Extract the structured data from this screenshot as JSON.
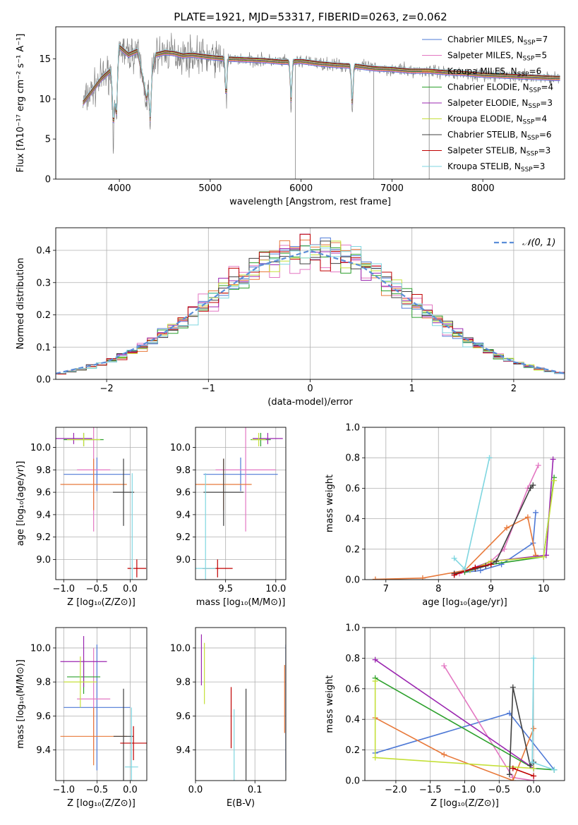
{
  "title": "PLATE=1921, MJD=53317, FIBERID=0263, z=0.062",
  "colors": [
    "#4e79d6",
    "#e377c2",
    "#e8793a",
    "#2ca02c",
    "#9b27b0",
    "#c5e03a",
    "#404040",
    "#c00000",
    "#7fd6e0"
  ],
  "chart_data": [
    {
      "type": "line",
      "panel": "spectrum",
      "xlabel": "wavelength [Angstrom, rest frame]",
      "ylabel": "Flux [fλ10⁻¹⁷ erg cm⁻² s⁻¹ A⁻¹]",
      "xlim": [
        3300,
        8900
      ],
      "ylim": [
        0,
        19
      ],
      "xticks": [
        4000,
        5000,
        6000,
        7000,
        8000
      ],
      "yticks": [
        0,
        5,
        10,
        15
      ],
      "grid": false,
      "legend_position": "top-right",
      "legend": [
        {
          "label": "Chabrier MILES, N",
          "sub": "SSP",
          "tail": "=7"
        },
        {
          "label": "Salpeter MILES, N",
          "sub": "SSP",
          "tail": "=5"
        },
        {
          "label": "Kroupa MILES, N",
          "sub": "SSP",
          "tail": "=6"
        },
        {
          "label": "Chabrier ELODIE, N",
          "sub": "SSP",
          "tail": "=4"
        },
        {
          "label": "Salpeter ELODIE, N",
          "sub": "SSP",
          "tail": "=3"
        },
        {
          "label": "Kroupa ELODIE, N",
          "sub": "SSP",
          "tail": "=4"
        },
        {
          "label": "Chabrier STELIB, N",
          "sub": "SSP",
          "tail": "=6"
        },
        {
          "label": "Salpeter STELIB, N",
          "sub": "SSP",
          "tail": "=3"
        },
        {
          "label": "Kroupa STELIB, N",
          "sub": "SSP",
          "tail": "=3"
        }
      ],
      "model_x": [
        3600,
        3700,
        3800,
        3900,
        3950,
        4000,
        4100,
        4200,
        4300,
        4400,
        4500,
        4600,
        4700,
        4800,
        5000,
        5200,
        5400,
        5600,
        5800,
        6000,
        6200,
        6400,
        6600,
        6800,
        7000,
        7200,
        7400,
        7600,
        7800,
        8000,
        8200,
        8400,
        8600,
        8800
      ],
      "model_y": [
        9.5,
        11,
        12.5,
        13.5,
        10.5,
        16.5,
        15.5,
        16,
        10,
        15.5,
        15.8,
        15.7,
        15.4,
        15.5,
        15.2,
        15.0,
        14.9,
        14.8,
        14.6,
        14.7,
        14.4,
        14.2,
        14.1,
        13.8,
        13.7,
        13.5,
        13.5,
        13.3,
        13.2,
        13.0,
        12.9,
        12.8,
        12.7,
        12.6
      ],
      "absorption_lines": [
        3934,
        3968,
        4340,
        5175,
        5890,
        6563
      ],
      "sky_spikes": [
        5938,
        6800,
        7410
      ]
    },
    {
      "type": "line",
      "panel": "residual-histogram",
      "xlabel": "(data-model)/error",
      "ylabel": "Normed distribution",
      "xlim": [
        -2.5,
        2.5
      ],
      "ylim": [
        0,
        0.47
      ],
      "xticks": [
        -2,
        -1,
        0,
        1,
        2
      ],
      "yticks": [
        0.0,
        0.1,
        0.2,
        0.3,
        0.4
      ],
      "grid": true,
      "legend_position": "top-right",
      "legend": [
        "𝒩(0, 1)"
      ],
      "bin_width": 0.1,
      "reference_x": [
        -2.5,
        -2.0,
        -1.5,
        -1.0,
        -0.5,
        0.0,
        0.5,
        1.0,
        1.5,
        2.0,
        2.5
      ],
      "reference_y": [
        0.018,
        0.054,
        0.13,
        0.242,
        0.352,
        0.399,
        0.352,
        0.242,
        0.13,
        0.054,
        0.018
      ]
    },
    {
      "type": "scatter",
      "panel": "age-vs-Z",
      "xlabel": "Z [log₁₀(Z/Z⊙)]",
      "ylabel": "age  [log₁₀(age/yr)]",
      "xlim": [
        -1.12,
        0.25
      ],
      "ylim": [
        8.82,
        10.18
      ],
      "xticks": [
        -1.0,
        -0.5,
        0.0
      ],
      "yticks": [
        9.0,
        9.2,
        9.4,
        9.6,
        9.8,
        10.0
      ],
      "grid": true,
      "points": [
        {
          "x": -0.5,
          "y": 9.76,
          "xerr": 0.5,
          "yerr": 0.15,
          "series": 0
        },
        {
          "x": -0.55,
          "y": 9.8,
          "xerr": 0.25,
          "yerr": 0.55,
          "series": 1
        },
        {
          "x": -0.55,
          "y": 9.67,
          "xerr": 0.5,
          "yerr": 0.23,
          "series": 2
        },
        {
          "x": -0.7,
          "y": 10.07,
          "xerr": 0.3,
          "yerr": 0.06,
          "series": 3
        },
        {
          "x": -0.85,
          "y": 10.08,
          "xerr": 0.28,
          "yerr": 0.05,
          "series": 4
        },
        {
          "x": -0.7,
          "y": 10.07,
          "xerr": 0.25,
          "yerr": 0.06,
          "series": 5
        },
        {
          "x": -0.1,
          "y": 9.6,
          "xerr": 0.16,
          "yerr": 0.3,
          "series": 6
        },
        {
          "x": 0.1,
          "y": 8.92,
          "xerr": 0.14,
          "yerr": 0.08,
          "series": 7
        },
        {
          "x": 0.03,
          "y": 8.92,
          "xerr": 0.02,
          "yerr": 0.85,
          "series": 8
        }
      ]
    },
    {
      "type": "scatter",
      "panel": "age-vs-mass",
      "xlabel": "mass [log₁₀(M/M⊙)]",
      "ylabel": "",
      "xlim": [
        9.2,
        10.1
      ],
      "ylim": [
        8.82,
        10.18
      ],
      "xticks": [
        9.5,
        10.0
      ],
      "yticks": [
        9.0,
        9.2,
        9.4,
        9.6,
        9.8,
        10.0
      ],
      "grid": true,
      "points": [
        {
          "x": 9.65,
          "y": 9.76,
          "xerr": 0.37,
          "yerr": 0.15,
          "series": 0
        },
        {
          "x": 9.7,
          "y": 9.8,
          "xerr": 0.3,
          "yerr": 0.55,
          "series": 1
        },
        {
          "x": 9.48,
          "y": 9.67,
          "xerr": 0.28,
          "yerr": 0.23,
          "series": 2
        },
        {
          "x": 9.85,
          "y": 10.07,
          "xerr": 0.1,
          "yerr": 0.06,
          "series": 3
        },
        {
          "x": 9.92,
          "y": 10.08,
          "xerr": 0.15,
          "yerr": 0.05,
          "series": 4
        },
        {
          "x": 9.83,
          "y": 10.07,
          "xerr": 0.07,
          "yerr": 0.06,
          "series": 5
        },
        {
          "x": 9.48,
          "y": 9.6,
          "xerr": 0.2,
          "yerr": 0.3,
          "series": 6
        },
        {
          "x": 9.42,
          "y": 8.92,
          "xerr": 0.15,
          "yerr": 0.08,
          "series": 7
        },
        {
          "x": 9.3,
          "y": 8.92,
          "xerr": 0.1,
          "yerr": 0.85,
          "series": 8
        }
      ]
    },
    {
      "type": "line",
      "panel": "mass-weight-vs-age",
      "xlabel": "age  [log₁₀(age/yr)]",
      "ylabel": "mass weight",
      "xlim": [
        6.6,
        10.4
      ],
      "ylim": [
        0,
        1.0
      ],
      "xticks": [
        7,
        8,
        9,
        10
      ],
      "yticks": [
        0.0,
        0.2,
        0.4,
        0.6,
        0.8,
        1.0
      ],
      "grid": true,
      "series": [
        {
          "x": [
            8.3,
            8.8,
            9.2,
            9.8,
            9.85
          ],
          "y": [
            0.04,
            0.06,
            0.1,
            0.24,
            0.44
          ],
          "color": 0
        },
        {
          "x": [
            8.4,
            8.9,
            9.25,
            9.7,
            9.9
          ],
          "y": [
            0.04,
            0.09,
            0.2,
            0.6,
            0.75
          ],
          "color": 1
        },
        {
          "x": [
            6.8,
            7.7,
            8.5,
            9.3,
            9.7,
            9.85
          ],
          "y": [
            0.002,
            0.01,
            0.06,
            0.34,
            0.41,
            0.16
          ],
          "color": 2
        },
        {
          "x": [
            8.5,
            9.0,
            10.0,
            10.2
          ],
          "y": [
            0.05,
            0.1,
            0.15,
            0.67
          ],
          "color": 3
        },
        {
          "x": [
            8.3,
            9.0,
            10.05,
            10.18
          ],
          "y": [
            0.03,
            0.12,
            0.16,
            0.79
          ],
          "color": 4
        },
        {
          "x": [
            8.6,
            9.0,
            10.0,
            10.2
          ],
          "y": [
            0.06,
            0.12,
            0.15,
            0.65
          ],
          "color": 5
        },
        {
          "x": [
            8.3,
            8.7,
            8.9,
            9.1,
            9.75,
            9.8
          ],
          "y": [
            0.04,
            0.07,
            0.09,
            0.12,
            0.6,
            0.62
          ],
          "color": 6
        },
        {
          "x": [
            8.3,
            8.7,
            9.0
          ],
          "y": [
            0.03,
            0.08,
            0.1
          ],
          "color": 7
        },
        {
          "x": [
            8.3,
            8.5,
            8.97
          ],
          "y": [
            0.14,
            0.07,
            0.8
          ],
          "color": 8
        }
      ]
    },
    {
      "type": "scatter",
      "panel": "mass-vs-Z",
      "xlabel": "Z [log₁₀(Z/Z⊙)]",
      "ylabel": "mass [log₁₀(M/M⊙)]",
      "xlim": [
        -1.12,
        0.25
      ],
      "ylim": [
        9.22,
        10.12
      ],
      "xticks": [
        -1.0,
        -0.5,
        0.0
      ],
      "yticks": [
        9.4,
        9.6,
        9.8,
        10.0
      ],
      "grid": true,
      "points": [
        {
          "x": -0.5,
          "y": 9.65,
          "xerr": 0.5,
          "yerr": 0.37,
          "series": 0
        },
        {
          "x": -0.55,
          "y": 9.7,
          "xerr": 0.25,
          "yerr": 0.3,
          "series": 1
        },
        {
          "x": -0.55,
          "y": 9.48,
          "xerr": 0.5,
          "yerr": 0.17,
          "series": 2
        },
        {
          "x": -0.7,
          "y": 9.83,
          "xerr": 0.25,
          "yerr": 0.1,
          "series": 3
        },
        {
          "x": -0.7,
          "y": 9.92,
          "xerr": 0.35,
          "yerr": 0.15,
          "series": 4
        },
        {
          "x": -0.75,
          "y": 9.8,
          "xerr": 0.25,
          "yerr": 0.15,
          "series": 5
        },
        {
          "x": -0.1,
          "y": 9.48,
          "xerr": 0.15,
          "yerr": 0.28,
          "series": 6
        },
        {
          "x": 0.05,
          "y": 9.44,
          "xerr": 0.2,
          "yerr": 0.1,
          "series": 7
        },
        {
          "x": 0.02,
          "y": 9.3,
          "xerr": 0.1,
          "yerr": 0.35,
          "series": 8
        }
      ]
    },
    {
      "type": "scatter",
      "panel": "mass-vs-EBV",
      "xlabel": "E(B-V)",
      "ylabel": "",
      "xlim": [
        0.0,
        0.152
      ],
      "ylim": [
        9.22,
        10.12
      ],
      "xticks": [
        0.0,
        0.1
      ],
      "yticks": [
        9.4,
        9.6,
        9.8,
        10.0
      ],
      "grid": true,
      "points": [
        {
          "x": 0.152,
          "y": 9.65,
          "yerr": 0.37,
          "series": 0
        },
        {
          "x": 0.15,
          "y": 9.7,
          "yerr": 0.2,
          "series": 2
        },
        {
          "x": 0.01,
          "y": 9.93,
          "yerr": 0.15,
          "series": 4
        },
        {
          "x": 0.015,
          "y": 9.85,
          "yerr": 0.18,
          "series": 5
        },
        {
          "x": 0.085,
          "y": 9.48,
          "yerr": 0.28,
          "series": 6
        },
        {
          "x": 0.06,
          "y": 9.59,
          "yerr": 0.18,
          "series": 7
        },
        {
          "x": 0.065,
          "y": 9.42,
          "yerr": 0.22,
          "series": 8
        }
      ]
    },
    {
      "type": "line",
      "panel": "mass-weight-vs-Z",
      "xlabel": "Z [log₁₀(Z/Z⊙)]",
      "ylabel": "mass weight",
      "xlim": [
        -2.45,
        0.45
      ],
      "ylim": [
        0,
        1.0
      ],
      "xticks": [
        -2.0,
        -1.5,
        -1.0,
        -0.5,
        0.0
      ],
      "yticks": [
        0.0,
        0.2,
        0.4,
        0.6,
        0.8,
        1.0
      ],
      "grid": true,
      "series": [
        {
          "x": [
            -2.3,
            -0.35,
            0.3
          ],
          "y": [
            0.18,
            0.44,
            0.07
          ],
          "color": 0
        },
        {
          "x": [
            -1.3,
            -0.3,
            0.0
          ],
          "y": [
            0.75,
            0.02,
            0.0
          ],
          "color": 1
        },
        {
          "x": [
            -2.3,
            -1.3,
            -0.3,
            0.0
          ],
          "y": [
            0.41,
            0.17,
            0.0,
            0.34
          ],
          "color": 2
        },
        {
          "x": [
            -2.3,
            0.0,
            0.3
          ],
          "y": [
            0.67,
            0.08,
            0.07
          ],
          "color": 3
        },
        {
          "x": [
            -2.3,
            0.0
          ],
          "y": [
            0.79,
            0.08
          ],
          "color": 4
        },
        {
          "x": [
            -2.3,
            -2.3,
            0.0
          ],
          "y": [
            0.65,
            0.15,
            0.08
          ],
          "color": 5
        },
        {
          "x": [
            -0.35,
            -0.3,
            -0.05,
            0.0
          ],
          "y": [
            0.04,
            0.61,
            0.1,
            0.12
          ],
          "color": 6
        },
        {
          "x": [
            -0.3,
            0.0
          ],
          "y": [
            0.08,
            0.03
          ],
          "color": 7
        },
        {
          "x": [
            0.0,
            -0.02,
            0.3
          ],
          "y": [
            0.8,
            0.12,
            0.07
          ],
          "color": 8
        }
      ]
    }
  ]
}
